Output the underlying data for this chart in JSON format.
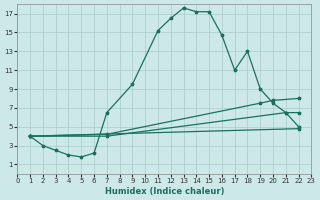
{
  "xlabel": "Humidex (Indice chaleur)",
  "bg_color": "#cce8e8",
  "grid_color": "#aacccc",
  "line_color": "#1a7060",
  "xlim": [
    0,
    23
  ],
  "ylim": [
    0,
    18
  ],
  "xticks": [
    0,
    1,
    2,
    3,
    4,
    5,
    6,
    7,
    8,
    9,
    10,
    11,
    12,
    13,
    14,
    15,
    16,
    17,
    18,
    19,
    20,
    21,
    22,
    23
  ],
  "yticks": [
    1,
    3,
    5,
    7,
    9,
    11,
    13,
    15,
    17
  ],
  "series1_x": [
    1,
    2,
    3,
    4,
    5,
    6,
    7,
    9,
    11,
    12,
    13,
    14,
    15,
    16,
    17,
    18,
    19,
    20,
    21,
    22
  ],
  "series1_y": [
    4,
    3,
    2.5,
    2,
    1.8,
    2.2,
    6.5,
    9.5,
    15.2,
    16.5,
    17.6,
    17.2,
    17.2,
    14.7,
    11.0,
    13.0,
    9.0,
    7.5,
    6.5,
    5.0
  ],
  "series2_x": [
    1,
    7,
    19,
    20,
    22
  ],
  "series2_y": [
    4,
    4.2,
    7.5,
    7.8,
    8.0
  ],
  "series3_x": [
    1,
    7,
    21,
    22
  ],
  "series3_y": [
    4,
    4.0,
    6.5,
    6.5
  ],
  "series4_x": [
    1,
    22
  ],
  "series4_y": [
    4,
    4.8
  ]
}
